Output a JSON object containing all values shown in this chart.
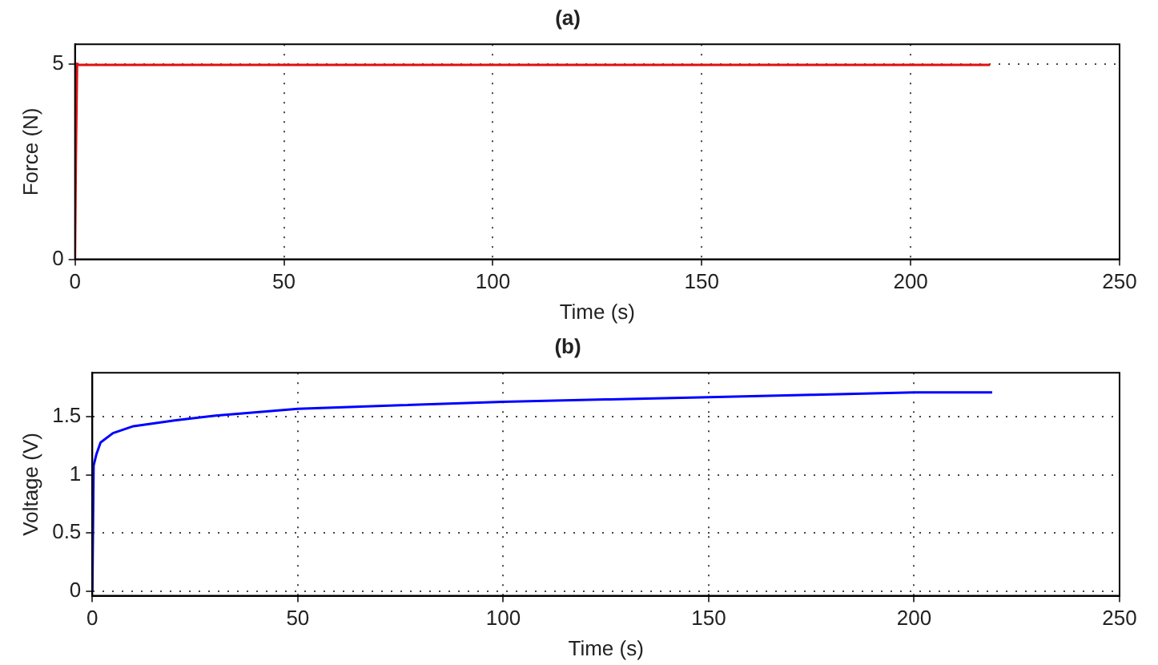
{
  "chart_data": [
    {
      "type": "line",
      "title": "(a)",
      "xlabel": "Time (s)",
      "ylabel": "Force (N)",
      "xlim": [
        0,
        250
      ],
      "xticks": [
        0,
        50,
        100,
        150,
        200,
        250
      ],
      "ylim": [
        0,
        5.5
      ],
      "yticks": [
        0,
        5
      ],
      "grid": true,
      "legend": false,
      "marker": "none",
      "line_style": "solid",
      "series": [
        {
          "color": "#e01010",
          "x": [
            0,
            0.2,
            0.5,
            1,
            5,
            20,
            50,
            100,
            150,
            200,
            219
          ],
          "values": [
            0,
            2.5,
            5,
            4.97,
            4.97,
            4.97,
            4.97,
            4.97,
            4.97,
            4.97,
            4.97
          ]
        }
      ]
    },
    {
      "type": "line",
      "title": "(b)",
      "xlabel": "Time (s)",
      "ylabel": "Voltage (V)",
      "xlim": [
        0,
        250
      ],
      "xticks": [
        0,
        50,
        100,
        150,
        200,
        250
      ],
      "ylim": [
        -0.04,
        1.88
      ],
      "yticks": [
        0,
        0.5,
        1,
        1.5
      ],
      "grid": true,
      "legend": false,
      "marker": "none",
      "line_style": "solid",
      "series": [
        {
          "color": "#0000ff",
          "x": [
            0,
            0.3,
            1,
            2,
            5,
            10,
            20,
            30,
            50,
            75,
            100,
            125,
            150,
            175,
            200,
            219
          ],
          "values": [
            0,
            1.08,
            1.18,
            1.28,
            1.36,
            1.42,
            1.47,
            1.51,
            1.57,
            1.6,
            1.63,
            1.65,
            1.67,
            1.69,
            1.71,
            1.71
          ]
        }
      ]
    }
  ]
}
